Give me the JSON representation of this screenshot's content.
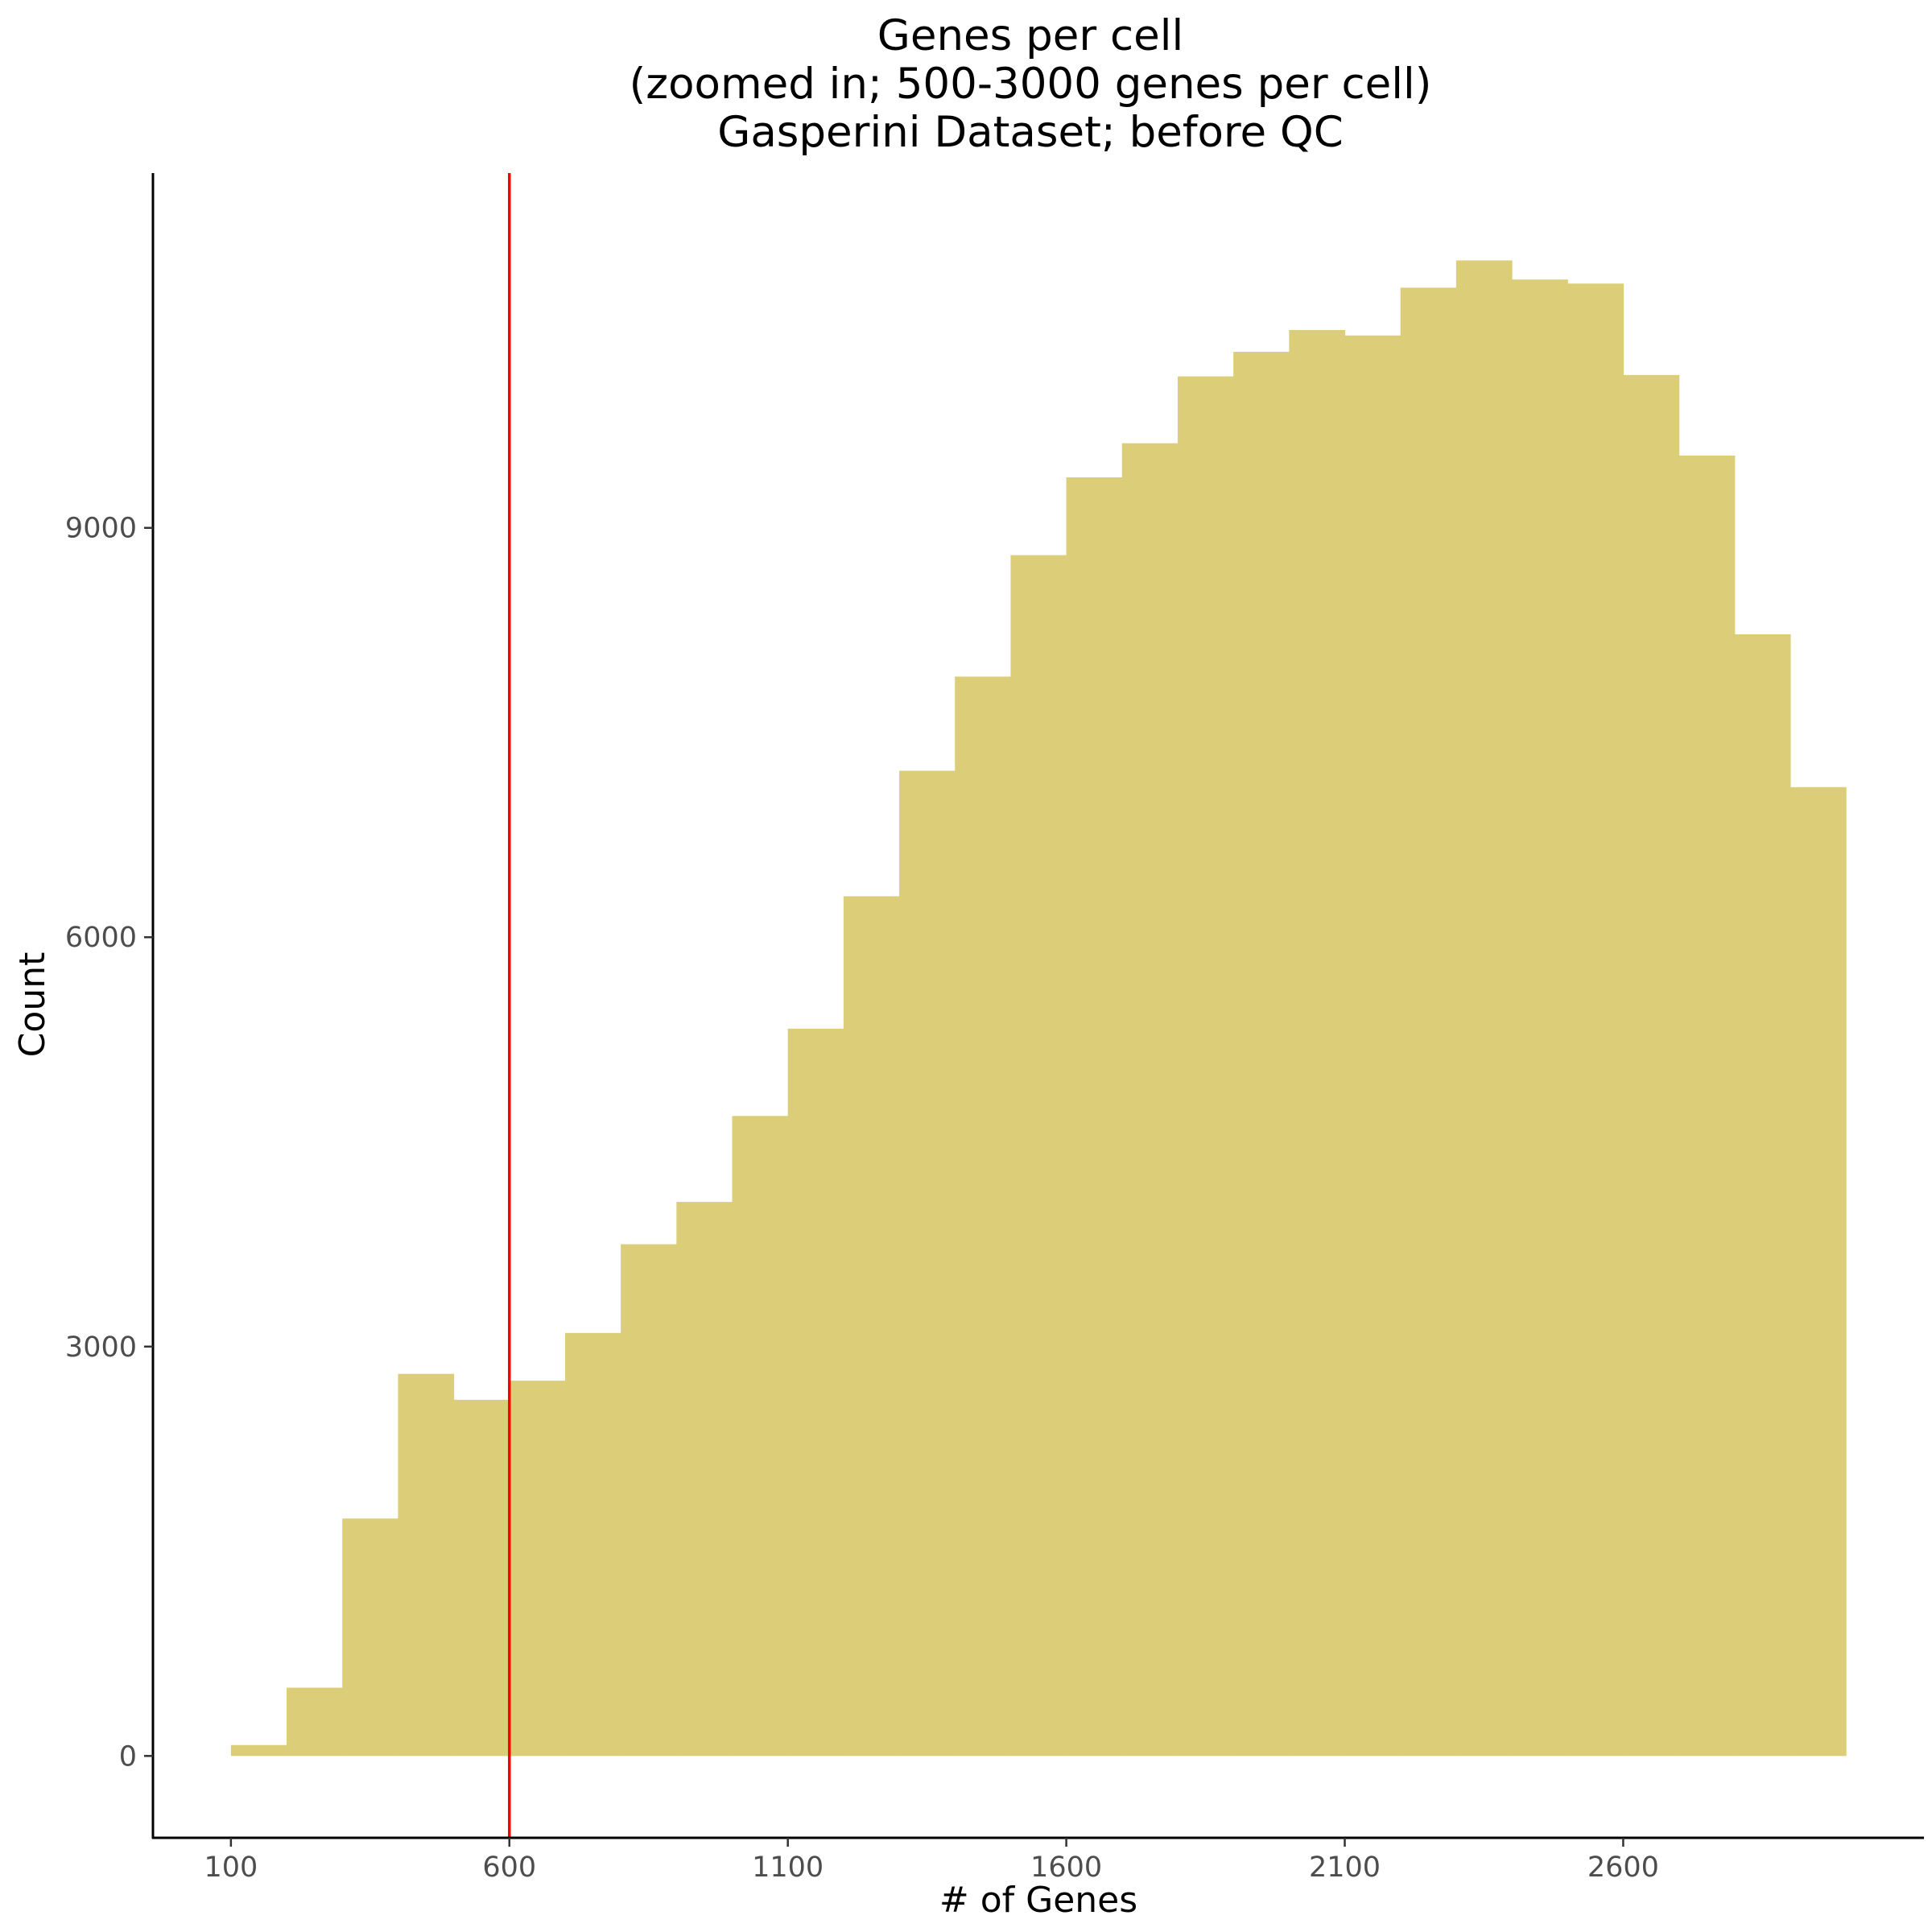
{
  "chart_data": {
    "type": "bar",
    "title_lines": [
      "Genes per cell",
      "(zoomed in; 500-3000 genes per cell)",
      "Gasperini Dataset; before QC"
    ],
    "xlabel": "# of Genes",
    "ylabel": "Count",
    "xlim": [
      -40,
      3140
    ],
    "ylim": [
      -600,
      11600
    ],
    "x_ticks": [
      100,
      600,
      1100,
      1600,
      2100,
      2600
    ],
    "y_ticks": [
      0,
      3000,
      6000,
      9000
    ],
    "bin_width": 100,
    "bin_starts": [
      100,
      200,
      300,
      400,
      500,
      600,
      700,
      800,
      900,
      1000,
      1100,
      1200,
      1300,
      1400,
      1500,
      1600,
      1700,
      1800,
      1900,
      2000,
      2100,
      2200,
      2300,
      2400,
      2500,
      2600,
      2700,
      2800,
      2900
    ],
    "counts": [
      80,
      500,
      1740,
      2800,
      2610,
      2750,
      3100,
      3750,
      4060,
      4690,
      5330,
      6300,
      7220,
      7910,
      8800,
      9370,
      9620,
      10110,
      10290,
      10450,
      10410,
      10760,
      10960,
      10820,
      10790,
      10120,
      9530,
      8220,
      7100
    ],
    "cutoff_x": 600,
    "colors": {
      "bar_fill": "#dccd78",
      "cutoff_line": "#ff0000",
      "axis": "#000000"
    }
  }
}
